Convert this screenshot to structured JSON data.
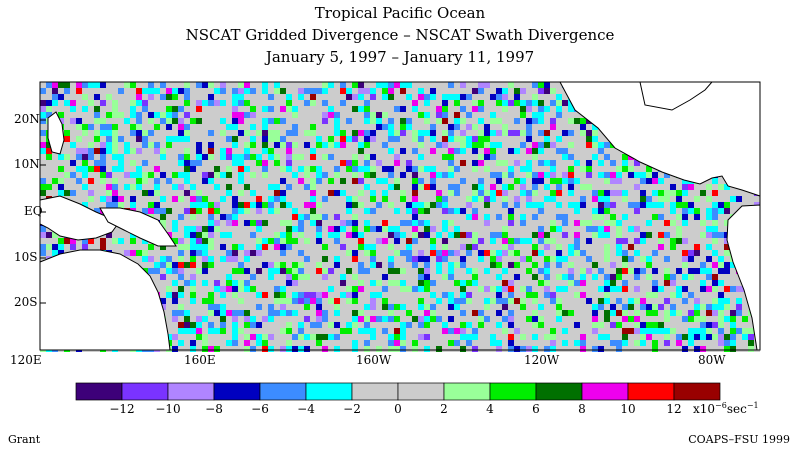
{
  "title": {
    "line1": "Tropical Pacific Ocean",
    "line2": "NSCAT Gridded Divergence – NSCAT Swath Divergence",
    "line3": "January 5, 1997 – January 11, 1997"
  },
  "lat_labels": [
    "20N",
    "10N",
    "EQ",
    "10S",
    "20S"
  ],
  "lon_labels": [
    "120E",
    "160E",
    "160W",
    "120W",
    "80W"
  ],
  "colorbar": {
    "colors": [
      "#3d0079",
      "#7a33ff",
      "#b085ff",
      "#0000c0",
      "#3c8cff",
      "#00ffff",
      "#cccccc",
      "#cccccc",
      "#99ff99",
      "#00ee00",
      "#007000",
      "#ee00ee",
      "#ff0000",
      "#990000"
    ],
    "tick_labels": [
      "−12",
      "−10",
      "−8",
      "−6",
      "−4",
      "−2",
      "0",
      "2",
      "4",
      "6",
      "8",
      "10",
      "12"
    ],
    "unit_prefix": "x10",
    "unit_exponent": "−6",
    "unit_suffix": "sec",
    "unit_suffix_exponent": "−1"
  },
  "credits": {
    "author": "Grant",
    "source": "COAPS–FSU 1999"
  }
}
